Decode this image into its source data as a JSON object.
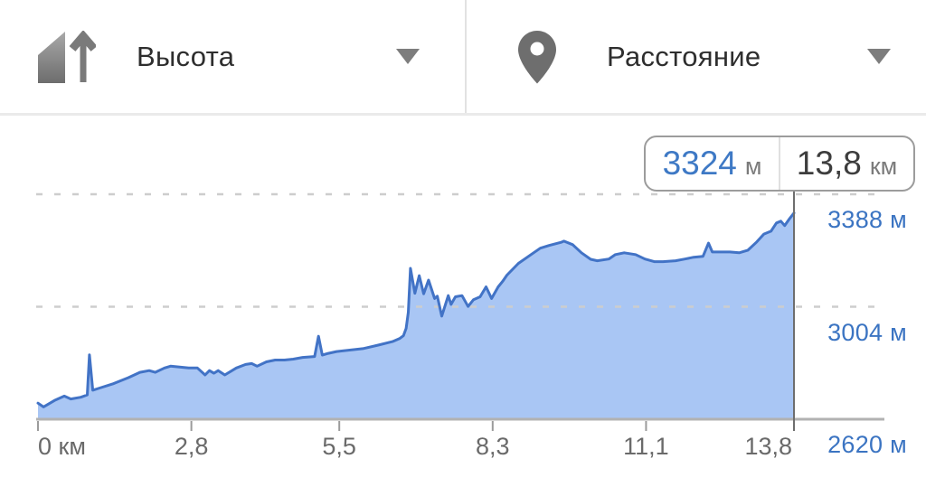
{
  "header": {
    "left_dropdown": {
      "label": "Высота",
      "icon": "elevation-icon"
    },
    "right_dropdown": {
      "label": "Расстояние",
      "icon": "location-pin-icon"
    }
  },
  "readout": {
    "elevation": {
      "value": "3324",
      "unit": "м"
    },
    "distance": {
      "value": "13,8",
      "unit": "км"
    }
  },
  "chart_data": {
    "type": "area",
    "title": "Elevation profile (Высота vs Расстояние)",
    "xlabel": "Расстояние, км",
    "ylabel": "Высота, м",
    "x_range": [
      0,
      13.8
    ],
    "y_range": [
      2620,
      3388
    ],
    "grid": "horizontal dashed lines at y ticks, solid baseline",
    "legend": "none",
    "x_ticks": [
      {
        "label": "0 км",
        "value": 0
      },
      {
        "label": "2,8",
        "value": 2.8
      },
      {
        "label": "5,5",
        "value": 5.5
      },
      {
        "label": "8,3",
        "value": 8.3
      },
      {
        "label": "11,1",
        "value": 11.1
      },
      {
        "label": "13,8",
        "value": 13.8
      }
    ],
    "y_ticks": [
      {
        "label": "3388 м",
        "value": 3388
      },
      {
        "label": "3004 м",
        "value": 3004
      },
      {
        "label": "2620 м",
        "value": 2620
      }
    ],
    "cursor": {
      "x_km": 13.8,
      "elevation_m": 3324
    },
    "colors": {
      "line": "#4273c6",
      "fill": "#a9c6f4",
      "axis_label_blue": "#3b74c2",
      "axis_label_gray": "#6a6a6a",
      "gridline": "#cdcdcd",
      "baseline": "#b2b2b2",
      "cursor_line": "#6e6e6e"
    },
    "series": [
      {
        "name": "elevation_m_vs_km",
        "points": [
          [
            0.0,
            2675
          ],
          [
            0.1,
            2662
          ],
          [
            0.3,
            2684
          ],
          [
            0.48,
            2699
          ],
          [
            0.6,
            2689
          ],
          [
            0.78,
            2695
          ],
          [
            0.9,
            2703
          ],
          [
            0.94,
            2840
          ],
          [
            1.0,
            2719
          ],
          [
            1.1,
            2725
          ],
          [
            1.37,
            2741
          ],
          [
            1.65,
            2762
          ],
          [
            1.86,
            2780
          ],
          [
            2.03,
            2786
          ],
          [
            2.14,
            2780
          ],
          [
            2.31,
            2795
          ],
          [
            2.42,
            2801
          ],
          [
            2.75,
            2795
          ],
          [
            2.91,
            2795
          ],
          [
            3.05,
            2771
          ],
          [
            3.13,
            2786
          ],
          [
            3.21,
            2777
          ],
          [
            3.29,
            2786
          ],
          [
            3.41,
            2771
          ],
          [
            3.62,
            2795
          ],
          [
            3.79,
            2807
          ],
          [
            3.9,
            2810
          ],
          [
            4.0,
            2801
          ],
          [
            4.17,
            2816
          ],
          [
            4.33,
            2822
          ],
          [
            4.5,
            2822
          ],
          [
            4.66,
            2825
          ],
          [
            4.83,
            2831
          ],
          [
            5.05,
            2834
          ],
          [
            5.12,
            2903
          ],
          [
            5.19,
            2839
          ],
          [
            5.3,
            2845
          ],
          [
            5.45,
            2851
          ],
          [
            5.93,
            2861
          ],
          [
            6.21,
            2873
          ],
          [
            6.47,
            2885
          ],
          [
            6.6,
            2895
          ],
          [
            6.67,
            2905
          ],
          [
            6.72,
            2930
          ],
          [
            6.76,
            2985
          ],
          [
            6.8,
            3135
          ],
          [
            6.88,
            3050
          ],
          [
            6.96,
            3110
          ],
          [
            7.04,
            3048
          ],
          [
            7.13,
            3095
          ],
          [
            7.24,
            3032
          ],
          [
            7.29,
            3040
          ],
          [
            7.37,
            2972
          ],
          [
            7.49,
            3042
          ],
          [
            7.54,
            3012
          ],
          [
            7.62,
            3038
          ],
          [
            7.74,
            3042
          ],
          [
            7.85,
            3005
          ],
          [
            7.95,
            3028
          ],
          [
            8.07,
            3038
          ],
          [
            8.18,
            3072
          ],
          [
            8.28,
            3032
          ],
          [
            8.4,
            3072
          ],
          [
            8.48,
            3090
          ],
          [
            8.56,
            3112
          ],
          [
            8.77,
            3152
          ],
          [
            9.0,
            3182
          ],
          [
            9.17,
            3204
          ],
          [
            9.33,
            3213
          ],
          [
            9.55,
            3224
          ],
          [
            9.6,
            3228
          ],
          [
            9.76,
            3216
          ],
          [
            9.92,
            3188
          ],
          [
            10.09,
            3166
          ],
          [
            10.21,
            3161
          ],
          [
            10.42,
            3167
          ],
          [
            10.54,
            3182
          ],
          [
            10.7,
            3188
          ],
          [
            10.91,
            3182
          ],
          [
            11.08,
            3167
          ],
          [
            11.25,
            3158
          ],
          [
            11.41,
            3158
          ],
          [
            11.64,
            3161
          ],
          [
            11.81,
            3167
          ],
          [
            11.97,
            3173
          ],
          [
            12.14,
            3176
          ],
          [
            12.24,
            3221
          ],
          [
            12.31,
            3191
          ],
          [
            12.47,
            3191
          ],
          [
            12.63,
            3191
          ],
          [
            12.8,
            3188
          ],
          [
            12.96,
            3197
          ],
          [
            13.12,
            3225
          ],
          [
            13.25,
            3252
          ],
          [
            13.38,
            3262
          ],
          [
            13.48,
            3290
          ],
          [
            13.56,
            3296
          ],
          [
            13.63,
            3281
          ],
          [
            13.72,
            3305
          ],
          [
            13.8,
            3324
          ]
        ]
      }
    ]
  }
}
